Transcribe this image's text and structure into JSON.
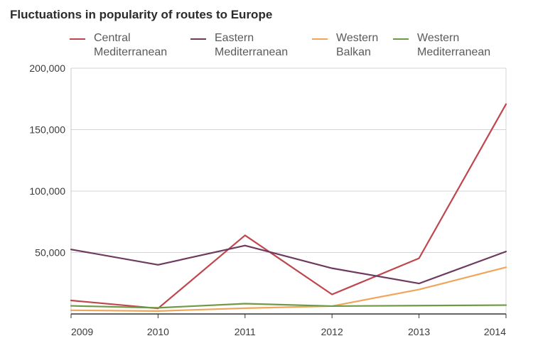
{
  "chart_data": {
    "type": "line",
    "title": "Fluctuations in popularity of routes to Europe",
    "categories": [
      "2009",
      "2010",
      "2011",
      "2012",
      "2013",
      "2014"
    ],
    "ylim": [
      0,
      200000
    ],
    "yticks": [
      50000,
      100000,
      150000,
      200000
    ],
    "ytick_labels": [
      "50,000",
      "100,000",
      "150,000",
      "200,000"
    ],
    "xlabel": "",
    "ylabel": "",
    "grid": true,
    "legend_position": "top",
    "series": [
      {
        "name": "Central Mediterranean",
        "label_lines": [
          "Central",
          "Mediterranean"
        ],
        "color": "#c0464d",
        "values": [
          11000,
          4500,
          64000,
          15900,
          45300,
          170700
        ]
      },
      {
        "name": "Eastern Mediterranean",
        "label_lines": [
          "Eastern",
          "Mediterranean"
        ],
        "color": "#6e3a5e",
        "values": [
          52500,
          40000,
          55700,
          37200,
          24800,
          50800
        ]
      },
      {
        "name": "Western Balkan",
        "label_lines": [
          "Western",
          "Balkan"
        ],
        "color": "#f0a55a",
        "values": [
          3000,
          2400,
          4700,
          6400,
          19900,
          38000
        ]
      },
      {
        "name": "Western Mediterranean",
        "label_lines": [
          "Western",
          "Mediterranean"
        ],
        "color": "#6e9a45",
        "values": [
          6600,
          5000,
          8400,
          6400,
          6800,
          7200
        ]
      }
    ]
  }
}
